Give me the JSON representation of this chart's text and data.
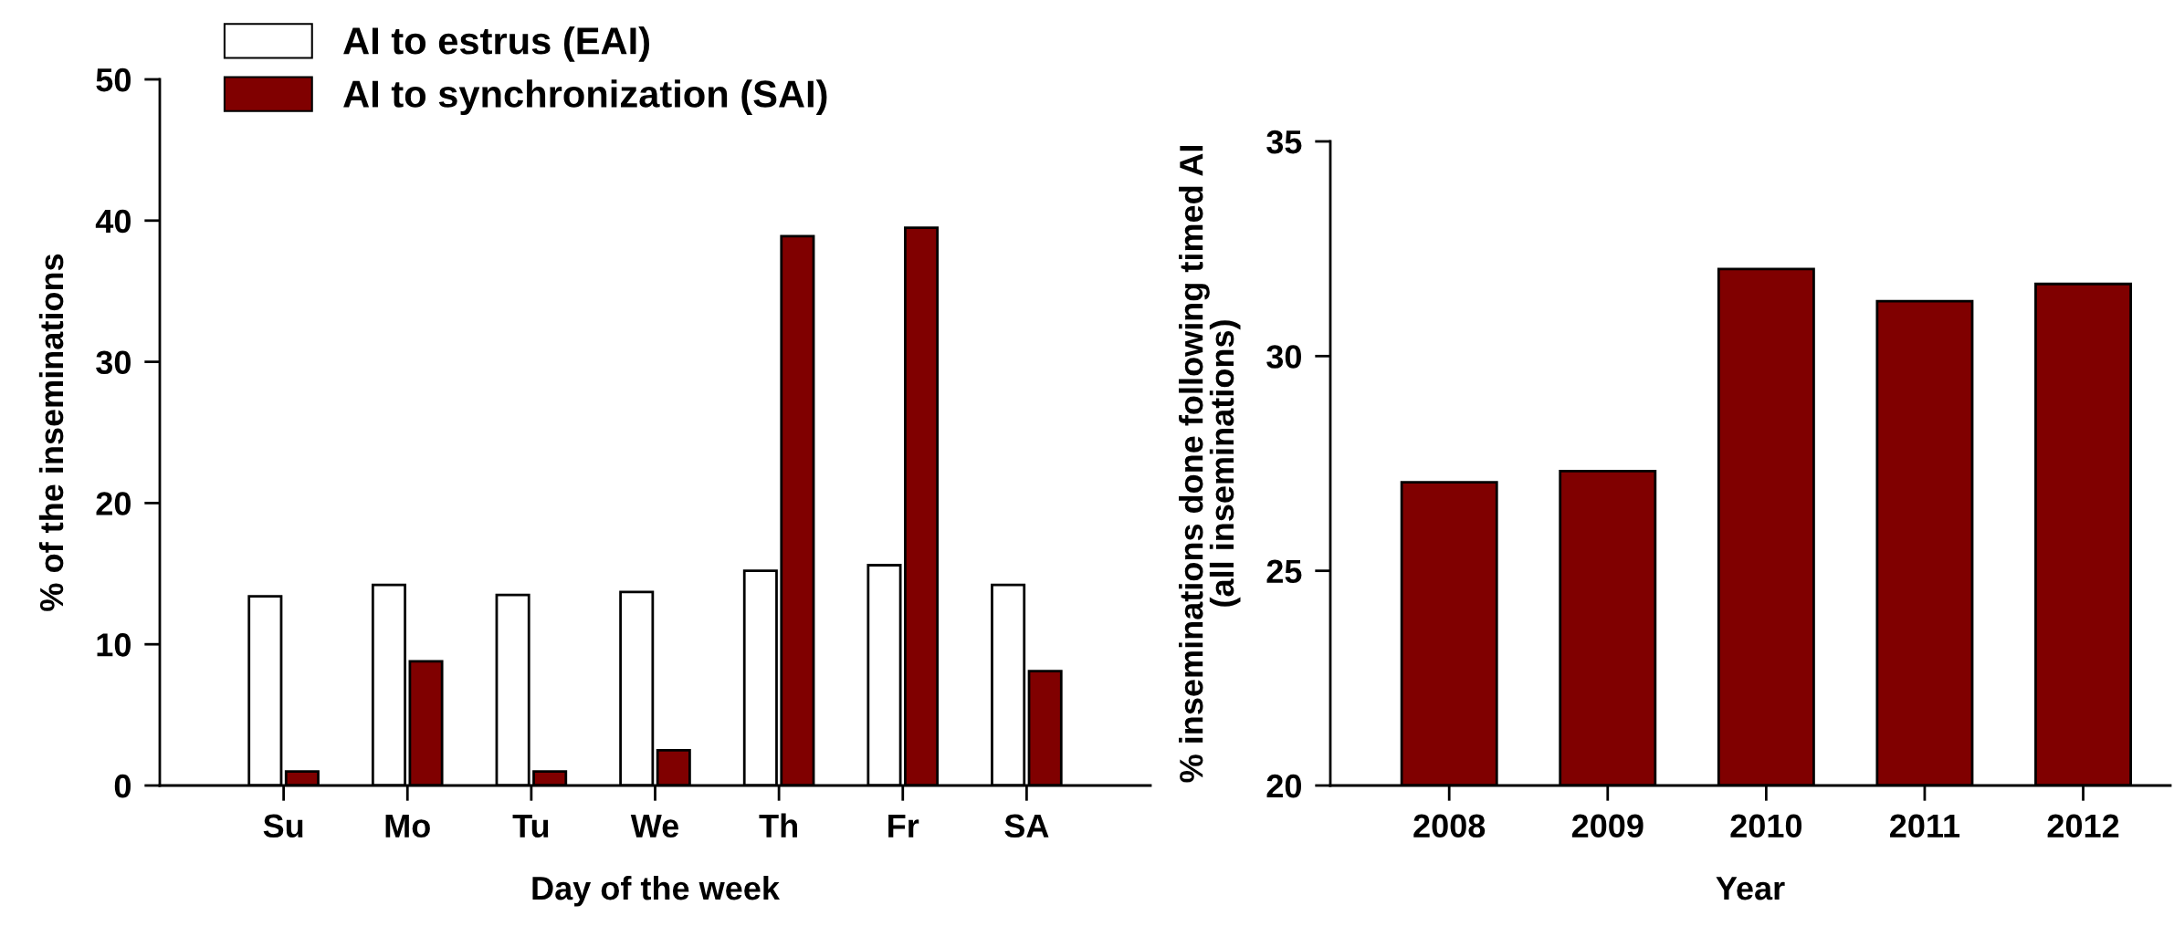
{
  "chart_data": [
    {
      "type": "bar",
      "xlabel": "Day of the week",
      "ylabel": "% of the inseminations",
      "categories": [
        "Su",
        "Mo",
        "Tu",
        "We",
        "Th",
        "Fr",
        "SA"
      ],
      "ylim": [
        0,
        50
      ],
      "yticks": [
        0,
        10,
        20,
        30,
        40,
        50
      ],
      "grid": false,
      "legend": "top left",
      "series": [
        {
          "name": "AI to estrus (EAI)",
          "color": "#ffffff",
          "values": [
            13.4,
            14.2,
            13.5,
            13.7,
            15.2,
            15.6,
            14.2
          ]
        },
        {
          "name": "AI to synchronization (SAI)",
          "color": "#800000",
          "values": [
            1.0,
            8.8,
            1.0,
            2.5,
            38.9,
            39.5,
            8.1
          ]
        }
      ]
    },
    {
      "type": "bar",
      "xlabel": "Year",
      "ylabel": "% inseminations done following timed AI\n(all inseminations)",
      "categories": [
        "2008",
        "2009",
        "2010",
        "2011",
        "2012"
      ],
      "ylim": [
        20,
        35
      ],
      "yticks": [
        20,
        25,
        30,
        35
      ],
      "grid": false,
      "legend": false,
      "series": [
        {
          "color": "#800000",
          "values": [
            27.06,
            27.32,
            32.03,
            31.28,
            31.68
          ]
        }
      ]
    }
  ]
}
